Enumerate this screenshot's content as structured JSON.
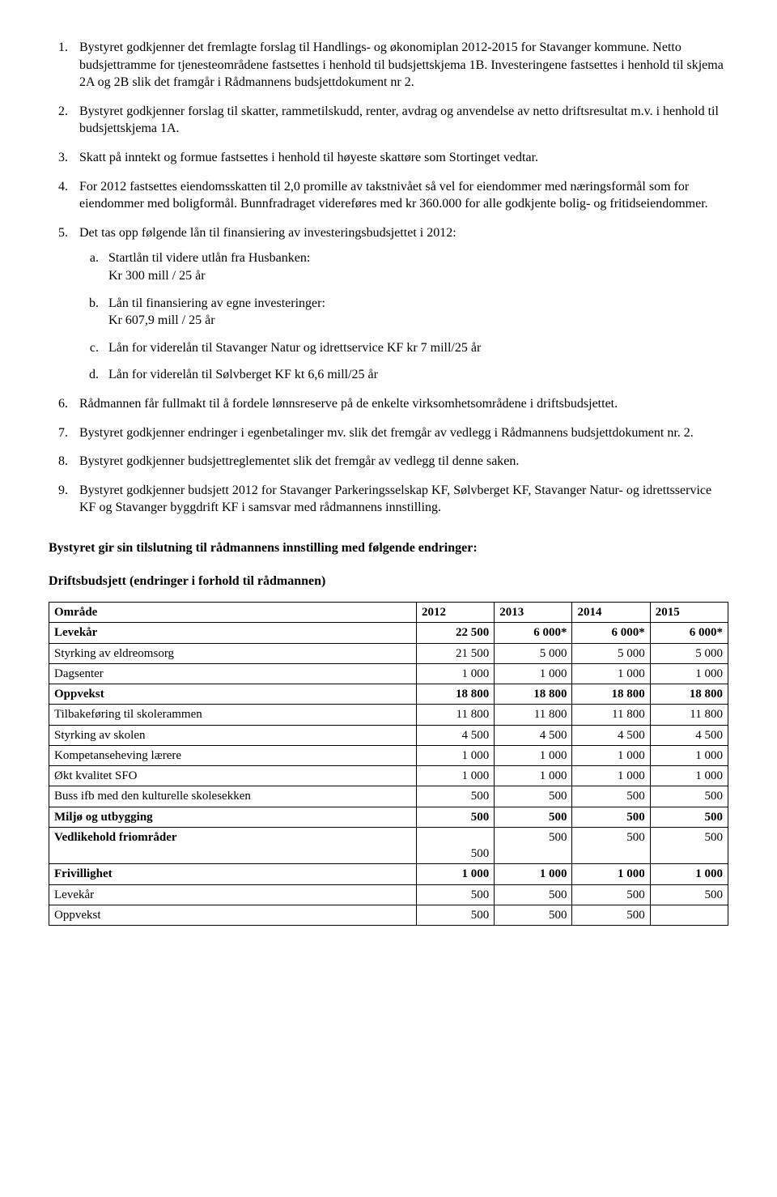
{
  "list": {
    "items": [
      "Bystyret godkjenner det fremlagte forslag til Handlings- og økonomiplan 2012-2015 for Stavanger kommune. Netto budsjettramme for tjenesteområdene fastsettes i henhold til budsjettskjema 1B. Investeringene fastsettes i henhold til skjema 2A og 2B slik det framgår i Rådmannens budsjettdokument nr 2.",
      "Bystyret godkjenner forslag til skatter, rammetilskudd, renter, avdrag og anvendelse av netto driftsresultat m.v. i henhold til budsjettskjema 1A.",
      "Skatt på inntekt og formue fastsettes i henhold til høyeste skattøre som Stortinget vedtar.",
      "For 2012 fastsettes eiendomsskatten til 2,0 promille av takstnivået så vel for eiendommer med næringsformål som for eiendommer med boligformål. Bunnfradraget videreføres med kr 360.000 for alle godkjente bolig- og fritidseiendommer.",
      "Det tas opp følgende lån til finansiering av investeringsbudsjettet i 2012:",
      "Rådmannen får fullmakt til å fordele lønnsreserve på de enkelte virksomhetsområdene i driftsbudsjettet.",
      "Bystyret godkjenner endringer i egenbetalinger mv. slik det fremgår av vedlegg i Rådmannens budsjettdokument nr. 2.",
      "Bystyret godkjenner budsjettreglementet slik det fremgår av vedlegg til denne saken.",
      "Bystyret godkjenner budsjett 2012 for Stavanger Parkeringsselskap KF, Sølvberget KF, Stavanger Natur- og idrettsservice KF og Stavanger byggdrift KF i samsvar med rådmannens innstilling."
    ],
    "sub5": [
      {
        "line1": "Startlån til videre utlån fra Husbanken:",
        "line2": "Kr 300 mill / 25 år"
      },
      {
        "line1": "Lån til finansiering av egne investeringer:",
        "line2": "Kr 607,9 mill / 25 år"
      },
      {
        "line1": "Lån for viderelån til Stavanger Natur og idrettservice KF kr 7 mill/25 år",
        "line2": ""
      },
      {
        "line1": "Lån for viderelån til Sølvberget KF kt 6,6 mill/25 år",
        "line2": ""
      }
    ]
  },
  "heading1": "Bystyret gir sin tilslutning til rådmannens innstilling med følgende endringer:",
  "heading2": "Driftsbudsjett (endringer i forhold til rådmannen)",
  "table": {
    "header": [
      "Område",
      "2012",
      "2013",
      "2014",
      "2015"
    ],
    "rows": [
      {
        "label": "Levekår",
        "cells": [
          "22 500",
          "6 000*",
          "6 000*",
          "6 000*"
        ],
        "bold": true
      },
      {
        "label": "Styrking av eldreomsorg",
        "cells": [
          "21 500",
          "5 000",
          "5 000",
          "5 000"
        ],
        "bold": false
      },
      {
        "label": "Dagsenter",
        "cells": [
          "1 000",
          "1 000",
          "1 000",
          "1 000"
        ],
        "bold": false
      },
      {
        "label": "Oppvekst",
        "cells": [
          "18 800",
          "18 800",
          "18 800",
          "18 800"
        ],
        "bold": true
      },
      {
        "label": "Tilbakeføring til skolerammen",
        "cells": [
          "11 800",
          "11 800",
          "11 800",
          "11 800"
        ],
        "bold": false
      },
      {
        "label": "Styrking av skolen",
        "cells": [
          "4 500",
          "4 500",
          "4 500",
          "4 500"
        ],
        "bold": false
      },
      {
        "label": "Kompetanseheving lærere",
        "cells": [
          "1 000",
          "1 000",
          "1 000",
          "1 000"
        ],
        "bold": false
      },
      {
        "label": "Økt kvalitet SFO",
        "cells": [
          "1 000",
          "1 000",
          "1 000",
          "1 000"
        ],
        "bold": false
      },
      {
        "label": "Buss ifb med den kulturelle skolesekken",
        "cells": [
          "500",
          "500",
          "500",
          "500"
        ],
        "bold": false
      },
      {
        "label": "Miljø og utbygging",
        "cells": [
          "500",
          "500",
          "500",
          "500"
        ],
        "bold": true
      },
      {
        "label": "Vedlikehold friområder",
        "cells": [
          "500",
          "500",
          "500",
          "500"
        ],
        "bold": true,
        "special": true
      },
      {
        "label": "Frivillighet",
        "cells": [
          "1 000",
          "1 000",
          "1 000",
          "1 000"
        ],
        "bold": true
      },
      {
        "label": "Levekår",
        "cells": [
          "500",
          "500",
          "500",
          "500"
        ],
        "bold": false
      },
      {
        "label": "Oppvekst",
        "cells": [
          "500",
          "500",
          "500",
          ""
        ],
        "bold": false
      }
    ]
  }
}
